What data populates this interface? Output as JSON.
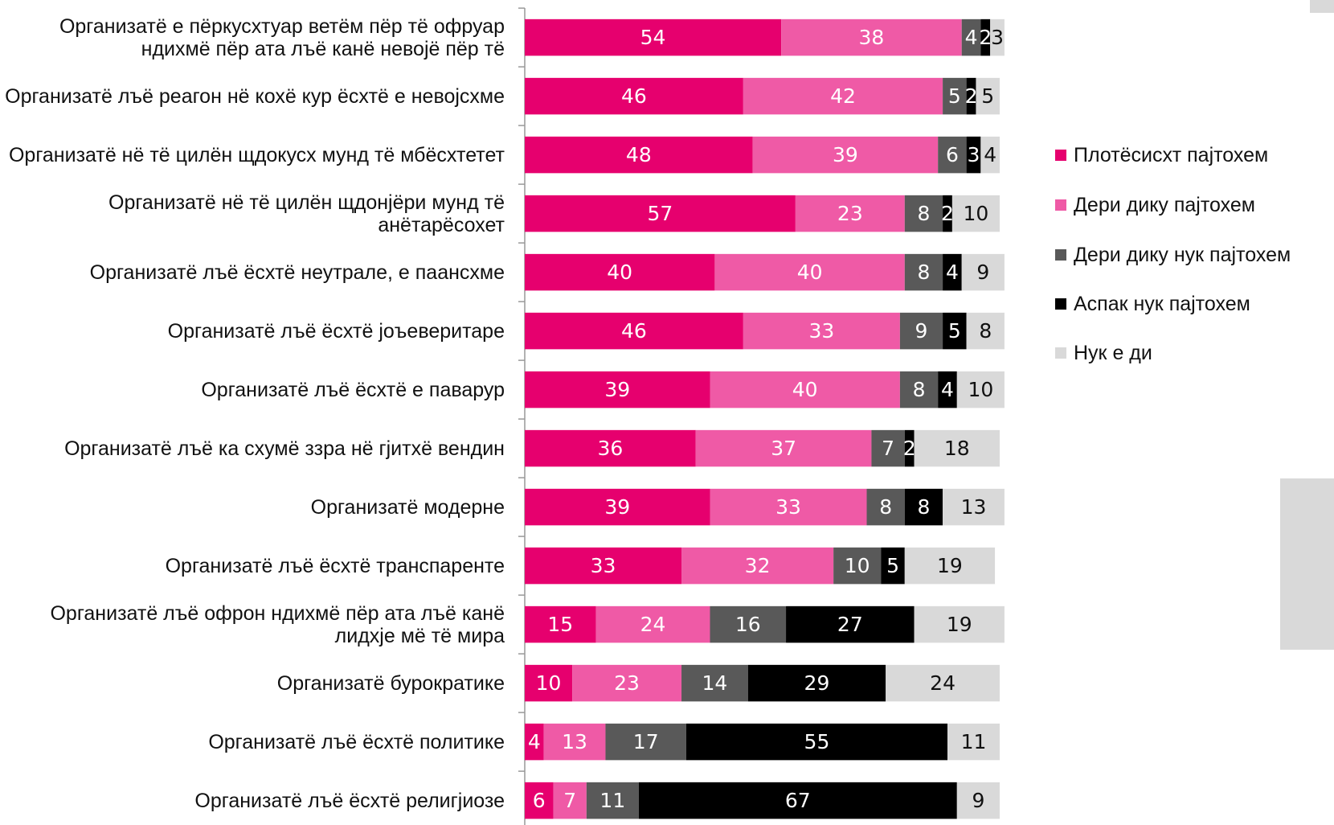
{
  "chart_data": {
    "type": "bar",
    "orientation": "horizontal",
    "stacked": true,
    "categories": [
      "Организатё е пёркусхтуар ветём пёр тё офруар ндихмё пёр ата лъё канё невојё пёр тё",
      "Организатё лъё реагон нё кохё кур ёсхтё е невојсхме",
      "Организатё нё тё цилён щдокусх мунд тё мбёсхтетет",
      "Организатё нё тё цилён щдонјёри мунд тё анётарёсохет",
      "Организатё лъё ёсхтё неутрале, е паансхме",
      "Организатё лъё ёсхтё јоъеверитаре",
      "Организатё лъё ёсхтё е паварур",
      "Организатё лъё ка схумё ззра нё гјитхё вендин",
      "Организатё модерне",
      "Организатё лъё ёсхтё транспаренте",
      "Организатё лъё офрон ндихмё пёр ата лъё канё лидхје мё тё мира",
      "Организатё бурократике",
      "Организатё лъё ёсхтё политике",
      "Организатё лъё ёсхтё религјиозе"
    ],
    "series": [
      {
        "name": "Плотёсисхт пајтохем",
        "color": "#e6006e",
        "label_color": "#ffffff",
        "values": [
          54,
          46,
          48,
          57,
          40,
          46,
          39,
          36,
          39,
          33,
          15,
          10,
          4,
          6
        ]
      },
      {
        "name": "Дери дику пајтохем",
        "color": "#ef5aa6",
        "label_color": "#ffffff",
        "values": [
          38,
          42,
          39,
          23,
          40,
          33,
          40,
          37,
          33,
          32,
          24,
          23,
          13,
          7
        ]
      },
      {
        "name": "Дери дику нук пајтохем",
        "color": "#595959",
        "label_color": "#ffffff",
        "values": [
          4,
          5,
          6,
          8,
          8,
          9,
          8,
          7,
          8,
          10,
          16,
          14,
          17,
          11
        ]
      },
      {
        "name": "Аспак нук пајтохем",
        "color": "#000000",
        "label_color": "#ffffff",
        "values": [
          2,
          2,
          3,
          2,
          4,
          5,
          4,
          2,
          8,
          5,
          27,
          29,
          55,
          67
        ]
      },
      {
        "name": "Нук е ди",
        "color": "#d9d9d9",
        "label_color": "#111111",
        "values": [
          3,
          5,
          4,
          10,
          9,
          8,
          10,
          18,
          13,
          19,
          19,
          24,
          11,
          9
        ]
      }
    ],
    "xlim": [
      0,
      100
    ],
    "legend": "right"
  }
}
